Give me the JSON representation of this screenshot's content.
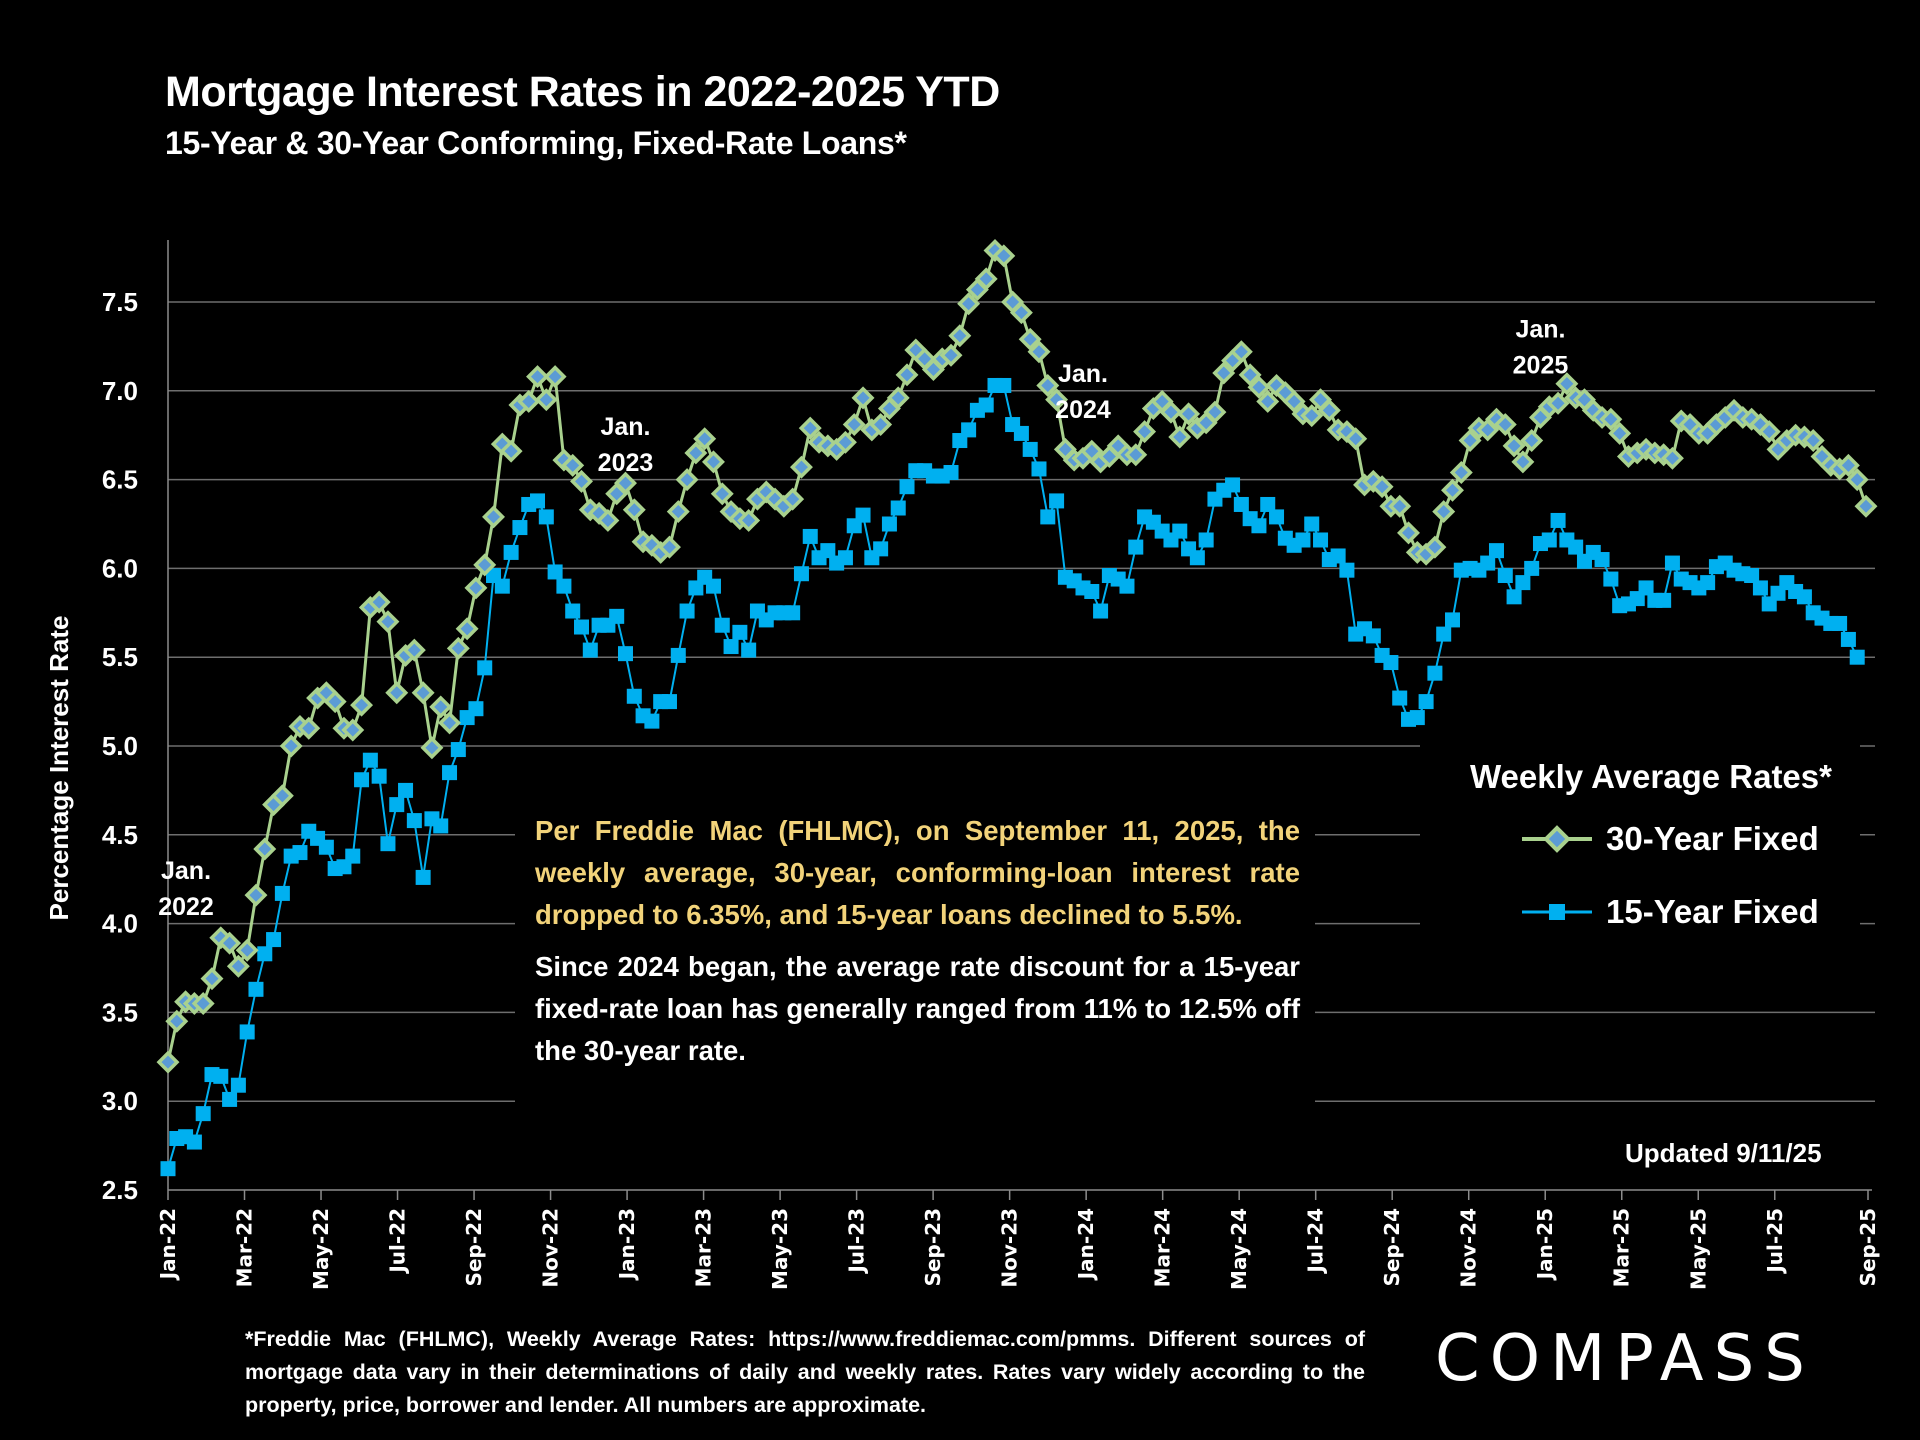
{
  "title": "Mortgage Interest Rates in 2022-2025 YTD",
  "subtitle": "15-Year & 30-Year Conforming, Fixed-Rate Loans*",
  "note_highlight": "Per Freddie Mac (FHLMC), on September 11, 2025, the weekly average, 30-year, conforming-loan interest rate dropped to 6.35%, and 15-year loans declined to 5.5%.",
  "note_body": "Since 2024 began, the average rate discount for a 15-year fixed-rate loan has generally ranged from 11% to 12.5% off the 30-year rate.",
  "updated": "Updated 9/11/25",
  "footnote": "*Freddie Mac (FHLMC), Weekly Average Rates:  https://www.freddiemac.com/pmms. Different sources of mortgage data vary in their determinations of daily and weekly rates. Rates vary widely according to the property, price, borrower and lender.  All numbers are approximate.",
  "logo": "COMPASS",
  "colors": {
    "series30": "#a9d18e",
    "series30_inner": "#5b9bd5",
    "series15": "#00b0f0",
    "highlight": "#f2d37a",
    "grid": "#6e6e6e"
  },
  "chart_data": {
    "type": "line",
    "title": "Mortgage Interest Rates in 2022-2025 YTD",
    "ylabel": "Percentage Interest  Rate",
    "xlabel": "",
    "ylim": [
      2.5,
      7.5
    ],
    "yticks": [
      "2.5",
      "3.0",
      "3.5",
      "4.0",
      "4.5",
      "5.0",
      "5.5",
      "6.0",
      "6.5",
      "7.0",
      "7.5"
    ],
    "xticks": [
      "Jan-22",
      "Mar-22",
      "May-22",
      "Jul-22",
      "Sep-22",
      "Nov-22",
      "Jan-23",
      "Mar-23",
      "May-23",
      "Jul-23",
      "Sep-23",
      "Nov-23",
      "Jan-24",
      "Mar-24",
      "May-24",
      "Jul-24",
      "Sep-24",
      "Nov-24",
      "Jan-25",
      "Mar-25",
      "May-25",
      "Jul-25",
      "Sep-25"
    ],
    "grid": true,
    "legend_title": "Weekly Average Rates*",
    "legend_position": "right",
    "annotations": [
      {
        "text": [
          "Jan.",
          "2022"
        ],
        "at_week": 0,
        "value": 4.25
      },
      {
        "text": [
          "Jan.",
          "2023"
        ],
        "at_week": 52,
        "value": 6.75
      },
      {
        "text": [
          "Jan.",
          "2024"
        ],
        "at_week": 104,
        "value": 7.05
      },
      {
        "text": [
          "Jan.",
          "2025"
        ],
        "at_week": 156,
        "value": 7.3
      }
    ],
    "series": [
      {
        "name": "30-Year Fixed",
        "marker": "diamond",
        "values": [
          3.22,
          3.45,
          3.56,
          3.55,
          3.55,
          3.69,
          3.92,
          3.89,
          3.76,
          3.85,
          4.16,
          4.42,
          4.67,
          4.72,
          5.0,
          5.11,
          5.1,
          5.27,
          5.3,
          5.25,
          5.1,
          5.09,
          5.23,
          5.78,
          5.81,
          5.7,
          5.3,
          5.51,
          5.54,
          5.3,
          4.99,
          5.22,
          5.13,
          5.55,
          5.66,
          5.89,
          6.02,
          6.29,
          6.7,
          6.66,
          6.92,
          6.94,
          7.08,
          6.95,
          7.08,
          6.61,
          6.58,
          6.49,
          6.33,
          6.31,
          6.27,
          6.42,
          6.48,
          6.33,
          6.15,
          6.13,
          6.09,
          6.12,
          6.32,
          6.5,
          6.65,
          6.73,
          6.6,
          6.42,
          6.32,
          6.28,
          6.27,
          6.39,
          6.43,
          6.39,
          6.35,
          6.39,
          6.57,
          6.79,
          6.71,
          6.69,
          6.67,
          6.71,
          6.81,
          6.96,
          6.78,
          6.81,
          6.9,
          6.96,
          7.09,
          7.23,
          7.18,
          7.12,
          7.18,
          7.2,
          7.31,
          7.49,
          7.57,
          7.63,
          7.79,
          7.76,
          7.5,
          7.44,
          7.29,
          7.22,
          7.03,
          6.95,
          6.67,
          6.61,
          6.62,
          6.66,
          6.6,
          6.63,
          6.69,
          6.64,
          6.64,
          6.77,
          6.9,
          6.94,
          6.88,
          6.74,
          6.87,
          6.79,
          6.82,
          6.88,
          7.1,
          7.17,
          7.22,
          7.09,
          7.02,
          6.94,
          7.03,
          6.99,
          6.94,
          6.87,
          6.86,
          6.95,
          6.89,
          6.78,
          6.77,
          6.73,
          6.47,
          6.49,
          6.46,
          6.35,
          6.35,
          6.2,
          6.09,
          6.08,
          6.12,
          6.32,
          6.44,
          6.54,
          6.72,
          6.79,
          6.78,
          6.84,
          6.81,
          6.69,
          6.6,
          6.72,
          6.85,
          6.91,
          6.93,
          7.04,
          6.96,
          6.95,
          6.89,
          6.85,
          6.84,
          6.76,
          6.63,
          6.65,
          6.67,
          6.65,
          6.64,
          6.62,
          6.83,
          6.81,
          6.76,
          6.76,
          6.81,
          6.85,
          6.89,
          6.85,
          6.84,
          6.81,
          6.77,
          6.67,
          6.72,
          6.75,
          6.74,
          6.72,
          6.63,
          6.58,
          6.56,
          6.58,
          6.5,
          6.35
        ]
      },
      {
        "name": "15-Year Fixed",
        "marker": "square",
        "values": [
          2.62,
          2.79,
          2.8,
          2.77,
          2.93,
          3.15,
          3.14,
          3.01,
          3.09,
          3.39,
          3.63,
          3.83,
          3.91,
          4.17,
          4.38,
          4.4,
          4.52,
          4.48,
          4.43,
          4.31,
          4.32,
          4.38,
          4.81,
          4.92,
          4.83,
          4.45,
          4.67,
          4.75,
          4.58,
          4.26,
          4.59,
          4.55,
          4.85,
          4.98,
          5.16,
          5.21,
          5.44,
          5.96,
          5.9,
          6.09,
          6.23,
          6.36,
          6.38,
          6.29,
          5.98,
          5.9,
          5.76,
          5.67,
          5.54,
          5.68,
          5.68,
          5.73,
          5.52,
          5.28,
          5.17,
          5.14,
          5.25,
          5.25,
          5.51,
          5.76,
          5.89,
          5.95,
          5.9,
          5.68,
          5.56,
          5.64,
          5.54,
          5.76,
          5.71,
          5.75,
          5.75,
          5.75,
          5.97,
          6.18,
          6.06,
          6.1,
          6.03,
          6.06,
          6.24,
          6.3,
          6.06,
          6.11,
          6.25,
          6.34,
          6.46,
          6.55,
          6.55,
          6.52,
          6.52,
          6.54,
          6.72,
          6.78,
          6.89,
          6.92,
          7.03,
          7.03,
          6.81,
          6.76,
          6.67,
          6.56,
          6.29,
          6.38,
          5.95,
          5.93,
          5.89,
          5.87,
          5.76,
          5.96,
          5.94,
          5.9,
          6.12,
          6.29,
          6.26,
          6.21,
          6.16,
          6.21,
          6.11,
          6.06,
          6.16,
          6.39,
          6.44,
          6.47,
          6.36,
          6.28,
          6.24,
          6.36,
          6.29,
          6.17,
          6.13,
          6.16,
          6.25,
          6.16,
          6.05,
          6.07,
          5.99,
          5.63,
          5.66,
          5.62,
          5.51,
          5.47,
          5.27,
          5.15,
          5.16,
          5.25,
          5.41,
          5.63,
          5.71,
          5.99,
          6.0,
          5.99,
          6.03,
          6.1,
          5.96,
          5.84,
          5.92,
          6.0,
          6.14,
          6.16,
          6.27,
          6.16,
          6.12,
          6.04,
          6.09,
          6.05,
          5.94,
          5.79,
          5.8,
          5.83,
          5.89,
          5.82,
          5.82,
          6.03,
          5.94,
          5.92,
          5.89,
          5.92,
          6.01,
          6.03,
          5.99,
          5.97,
          5.96,
          5.89,
          5.8,
          5.86,
          5.92,
          5.87,
          5.84,
          5.75,
          5.72,
          5.69,
          5.69,
          5.6,
          5.5
        ]
      }
    ]
  }
}
